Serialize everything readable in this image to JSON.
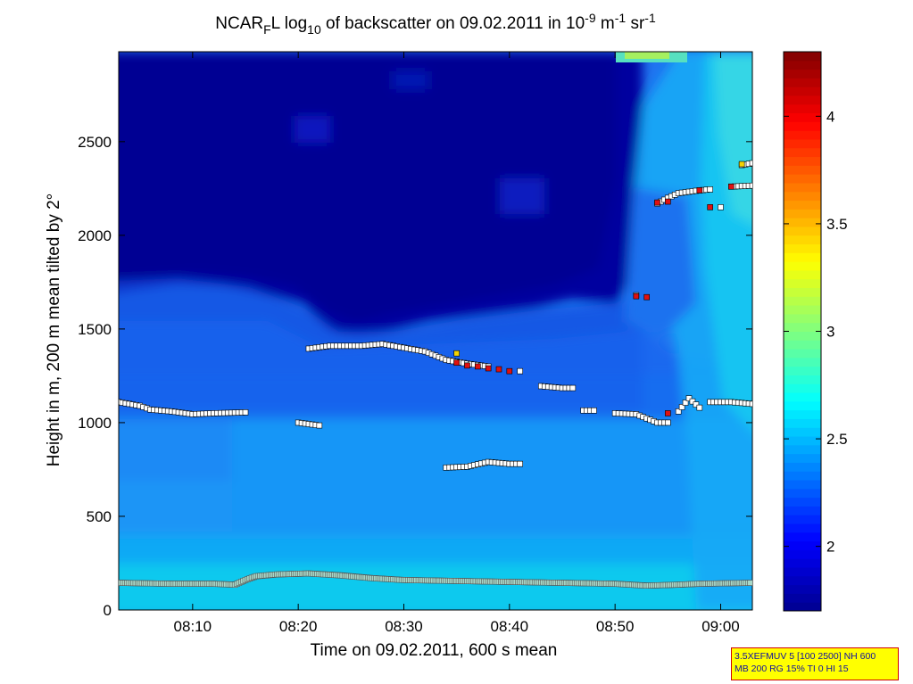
{
  "title": {
    "prefix": "NCAR",
    "sub1": "F",
    "mid": "L log",
    "sub2": "10",
    "rest": " of backscatter on 09.02.2011 in 10",
    "sup1": "-9",
    "unit1": " m",
    "sup2": "-1",
    "unit2": " sr",
    "sup3": "-1"
  },
  "info_box": {
    "line1": "3.5XEFMUV 5 [100 2500] NH 600",
    "line2": "MB 200 RG 15% TI 0 HI 15"
  },
  "chart_data": {
    "type": "heatmap",
    "xlabel": "Time on 09.02.2011, 600 s mean",
    "ylabel": "Height in m, 200 m mean tilted by 2°",
    "x_tick_labels": [
      "08:10",
      "08:20",
      "08:30",
      "08:40",
      "08:50",
      "09:00"
    ],
    "x_tick_minutes": [
      10,
      20,
      30,
      40,
      50,
      60
    ],
    "xlim_minutes": [
      3,
      63
    ],
    "ylim": [
      0,
      2980
    ],
    "y_ticks": [
      0,
      500,
      1000,
      1500,
      2000,
      2500
    ],
    "colorbar": {
      "range": [
        1.7,
        4.3
      ],
      "ticks": [
        2,
        2.5,
        3,
        3.5,
        4
      ],
      "tick_labels": [
        "2",
        "2.5",
        "3",
        "3.5",
        "4"
      ],
      "colormap": "jet"
    },
    "lowest_layer_markers": {
      "color": "#888888",
      "points": [
        [
          3,
          145
        ],
        [
          8,
          140
        ],
        [
          12,
          140
        ],
        [
          14,
          135
        ],
        [
          15,
          160
        ],
        [
          16,
          180
        ],
        [
          18,
          190
        ],
        [
          21,
          195
        ],
        [
          24,
          185
        ],
        [
          27,
          170
        ],
        [
          30,
          160
        ],
        [
          35,
          155
        ],
        [
          40,
          150
        ],
        [
          45,
          145
        ],
        [
          50,
          140
        ],
        [
          53,
          130
        ],
        [
          56,
          135
        ],
        [
          58,
          140
        ],
        [
          63,
          145
        ]
      ]
    },
    "layer_marker_series": [
      {
        "segments": [
          [
            [
              3,
              1110
            ],
            [
              5,
              1090
            ],
            [
              6,
              1070
            ],
            [
              8,
              1060
            ],
            [
              10,
              1045
            ],
            [
              12,
              1050
            ],
            [
              15,
              1055
            ]
          ],
          [
            [
              21,
              1395
            ],
            [
              23,
              1410
            ],
            [
              26,
              1410
            ],
            [
              28,
              1420
            ],
            [
              30,
              1400
            ],
            [
              32,
              1380
            ],
            [
              34,
              1335
            ],
            [
              36,
              1315
            ],
            [
              38,
              1300
            ]
          ],
          [
            [
              41,
              1275
            ]
          ],
          [
            [
              43,
              1195
            ],
            [
              45,
              1185
            ],
            [
              46,
              1185
            ]
          ],
          [
            [
              47,
              1065
            ],
            [
              48,
              1065
            ]
          ],
          [
            [
              50,
              1050
            ],
            [
              52,
              1045
            ],
            [
              54,
              1000
            ],
            [
              55,
              1000
            ]
          ],
          [
            [
              56,
              1060
            ],
            [
              57,
              1130
            ],
            [
              58,
              1080
            ]
          ],
          [
            [
              59,
              1110
            ],
            [
              61,
              1110
            ],
            [
              63,
              1100
            ]
          ],
          [
            [
              34,
              760
            ],
            [
              36,
              765
            ],
            [
              38,
              790
            ],
            [
              40,
              780
            ],
            [
              41,
              780
            ]
          ],
          [
            [
              20,
              1000
            ],
            [
              22,
              985
            ]
          ],
          [
            [
              52,
              1680
            ]
          ],
          [
            [
              54,
              2170
            ],
            [
              55,
              2200
            ],
            [
              56,
              2225
            ],
            [
              58,
              2240
            ],
            [
              59,
              2245
            ]
          ],
          [
            [
              60,
              2150
            ]
          ],
          [
            [
              61,
              2260
            ],
            [
              63,
              2265
            ]
          ],
          [
            [
              62,
              2375
            ],
            [
              63,
              2385
            ]
          ]
        ]
      }
    ],
    "red_markers": [
      [
        36,
        1305
      ],
      [
        37,
        1300
      ],
      [
        38,
        1290
      ],
      [
        39,
        1285
      ],
      [
        40,
        1275
      ],
      [
        35,
        1320
      ],
      [
        52,
        1675
      ],
      [
        53,
        1670
      ],
      [
        54,
        2175
      ],
      [
        55,
        2180
      ],
      [
        58,
        2240
      ],
      [
        59,
        2150
      ],
      [
        61,
        2260
      ],
      [
        55,
        1050
      ]
    ],
    "yellow_markers": [
      [
        35,
        1370
      ],
      [
        62,
        2380
      ]
    ]
  }
}
